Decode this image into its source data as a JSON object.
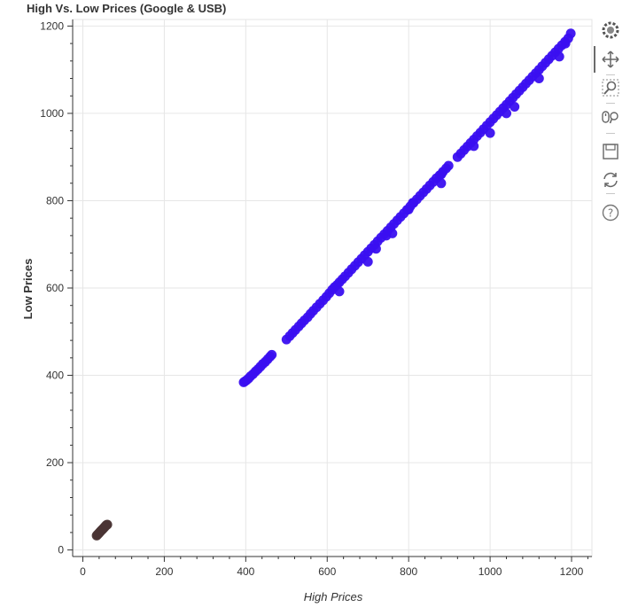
{
  "chart_data": {
    "type": "scatter",
    "title": "High Vs. Low Prices (Google & USB)",
    "xlabel": "High Prices",
    "ylabel": "Low Prices",
    "xlim": [
      -25,
      1250
    ],
    "ylim": [
      -15,
      1215
    ],
    "xticks": [
      0,
      200,
      400,
      600,
      800,
      1000,
      1200
    ],
    "yticks": [
      0,
      200,
      400,
      600,
      800,
      1000,
      1200
    ],
    "grid": true,
    "series": [
      {
        "color": "#3a0ff0",
        "points": [
          [
            395,
            384
          ],
          [
            398,
            386
          ],
          [
            402,
            389
          ],
          [
            407,
            393
          ],
          [
            412,
            398
          ],
          [
            418,
            403
          ],
          [
            424,
            409
          ],
          [
            430,
            414
          ],
          [
            436,
            420
          ],
          [
            442,
            426
          ],
          [
            448,
            431
          ],
          [
            454,
            437
          ],
          [
            460,
            443
          ],
          [
            464,
            447
          ],
          [
            500,
            482
          ],
          [
            508,
            490
          ],
          [
            515,
            497
          ],
          [
            522,
            504
          ],
          [
            530,
            512
          ],
          [
            537,
            519
          ],
          [
            544,
            526
          ],
          [
            552,
            533
          ],
          [
            559,
            541
          ],
          [
            566,
            548
          ],
          [
            574,
            556
          ],
          [
            582,
            564
          ],
          [
            590,
            572
          ],
          [
            598,
            580
          ],
          [
            605,
            588
          ],
          [
            612,
            596
          ],
          [
            618,
            602
          ],
          [
            624,
            607
          ],
          [
            630,
            613
          ],
          [
            637,
            620
          ],
          [
            644,
            627
          ],
          [
            652,
            635
          ],
          [
            660,
            643
          ],
          [
            668,
            651
          ],
          [
            676,
            659
          ],
          [
            684,
            667
          ],
          [
            692,
            675
          ],
          [
            700,
            683
          ],
          [
            708,
            691
          ],
          [
            716,
            699
          ],
          [
            724,
            707
          ],
          [
            732,
            715
          ],
          [
            740,
            723
          ],
          [
            748,
            731
          ],
          [
            756,
            739
          ],
          [
            764,
            747
          ],
          [
            772,
            755
          ],
          [
            780,
            763
          ],
          [
            788,
            771
          ],
          [
            796,
            779
          ],
          [
            804,
            787
          ],
          [
            812,
            795
          ],
          [
            820,
            803
          ],
          [
            828,
            811
          ],
          [
            836,
            819
          ],
          [
            844,
            827
          ],
          [
            852,
            835
          ],
          [
            860,
            843
          ],
          [
            868,
            851
          ],
          [
            876,
            858
          ],
          [
            884,
            866
          ],
          [
            892,
            874
          ],
          [
            898,
            880
          ],
          [
            920,
            900
          ],
          [
            928,
            908
          ],
          [
            936,
            916
          ],
          [
            944,
            924
          ],
          [
            952,
            932
          ],
          [
            960,
            940
          ],
          [
            968,
            948
          ],
          [
            976,
            956
          ],
          [
            984,
            964
          ],
          [
            992,
            972
          ],
          [
            1000,
            980
          ],
          [
            1008,
            988
          ],
          [
            1016,
            996
          ],
          [
            1024,
            1004
          ],
          [
            1032,
            1012
          ],
          [
            1040,
            1020
          ],
          [
            1048,
            1028
          ],
          [
            1056,
            1036
          ],
          [
            1064,
            1044
          ],
          [
            1072,
            1052
          ],
          [
            1080,
            1060
          ],
          [
            1088,
            1068
          ],
          [
            1096,
            1076
          ],
          [
            1104,
            1084
          ],
          [
            1112,
            1092
          ],
          [
            1120,
            1100
          ],
          [
            1128,
            1108
          ],
          [
            1136,
            1116
          ],
          [
            1144,
            1124
          ],
          [
            1152,
            1132
          ],
          [
            1160,
            1140
          ],
          [
            1168,
            1148
          ],
          [
            1176,
            1156
          ],
          [
            1184,
            1164
          ],
          [
            1192,
            1172
          ],
          [
            1198,
            1183
          ],
          [
            630,
            592
          ],
          [
            700,
            660
          ],
          [
            760,
            725
          ],
          [
            800,
            780
          ],
          [
            810,
            795
          ],
          [
            880,
            860
          ],
          [
            1000,
            955
          ],
          [
            960,
            925
          ],
          [
            1040,
            1000
          ],
          [
            1060,
            1015
          ],
          [
            1120,
            1080
          ],
          [
            1170,
            1130
          ],
          [
            1185,
            1160
          ],
          [
            880,
            840
          ],
          [
            720,
            690
          ],
          [
            745,
            720
          ]
        ]
      },
      {
        "color": "#4a3535",
        "points": [
          [
            34,
            33
          ],
          [
            36,
            35
          ],
          [
            38,
            37
          ],
          [
            40,
            39
          ],
          [
            42,
            41
          ],
          [
            44,
            43
          ],
          [
            46,
            45
          ],
          [
            48,
            47
          ],
          [
            50,
            49
          ],
          [
            52,
            51
          ],
          [
            54,
            53
          ],
          [
            56,
            55
          ],
          [
            58,
            57
          ],
          [
            60,
            58
          ]
        ]
      }
    ]
  },
  "toolbar": {
    "tools": [
      {
        "name": "bokeh-logo-icon",
        "active": false
      },
      {
        "name": "pan-tool-icon",
        "active": true
      },
      {
        "name": "box-zoom-tool-icon",
        "active": false
      },
      {
        "name": "wheel-zoom-tool-icon",
        "active": false
      },
      {
        "name": "save-tool-icon",
        "active": false
      },
      {
        "name": "reset-tool-icon",
        "active": false
      },
      {
        "name": "help-tool-icon",
        "active": false
      }
    ]
  }
}
